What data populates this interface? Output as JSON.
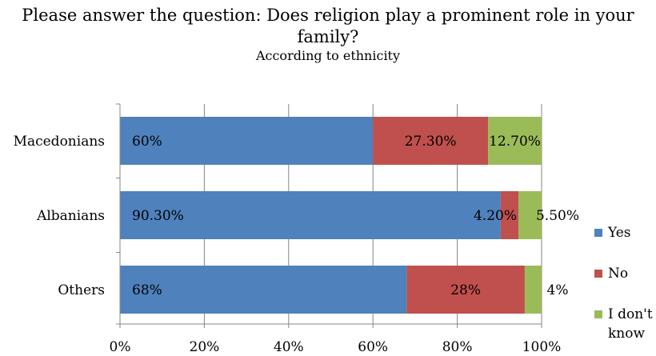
{
  "chart_data": {
    "type": "bar",
    "orientation": "horizontal",
    "stacked": true,
    "title": "Please answer the question: Does religion play a prominent role in your family?",
    "subtitle": "According to ethnicity",
    "categories": [
      "Macedonians",
      "Albanians",
      "Others"
    ],
    "series": [
      {
        "name": "Yes",
        "color": "#4f81bd",
        "values": [
          60,
          90.3,
          68
        ],
        "labels": [
          "60%",
          "90.30%",
          "68%"
        ]
      },
      {
        "name": "No",
        "color": "#c0504d",
        "values": [
          27.3,
          4.2,
          28
        ],
        "labels": [
          "27.30%",
          "4.20%",
          "28%"
        ]
      },
      {
        "name": "I don't know",
        "color": "#9bbb59",
        "values": [
          12.7,
          5.5,
          4
        ],
        "labels": [
          "12.70%",
          "5.50%",
          "4%"
        ]
      }
    ],
    "xlim": [
      0,
      100
    ],
    "xticks": [
      0,
      20,
      40,
      60,
      80,
      100
    ],
    "xtick_labels": [
      "0%",
      "20%",
      "40%",
      "60%",
      "80%",
      "100%"
    ],
    "grid": true,
    "legend": "right"
  }
}
